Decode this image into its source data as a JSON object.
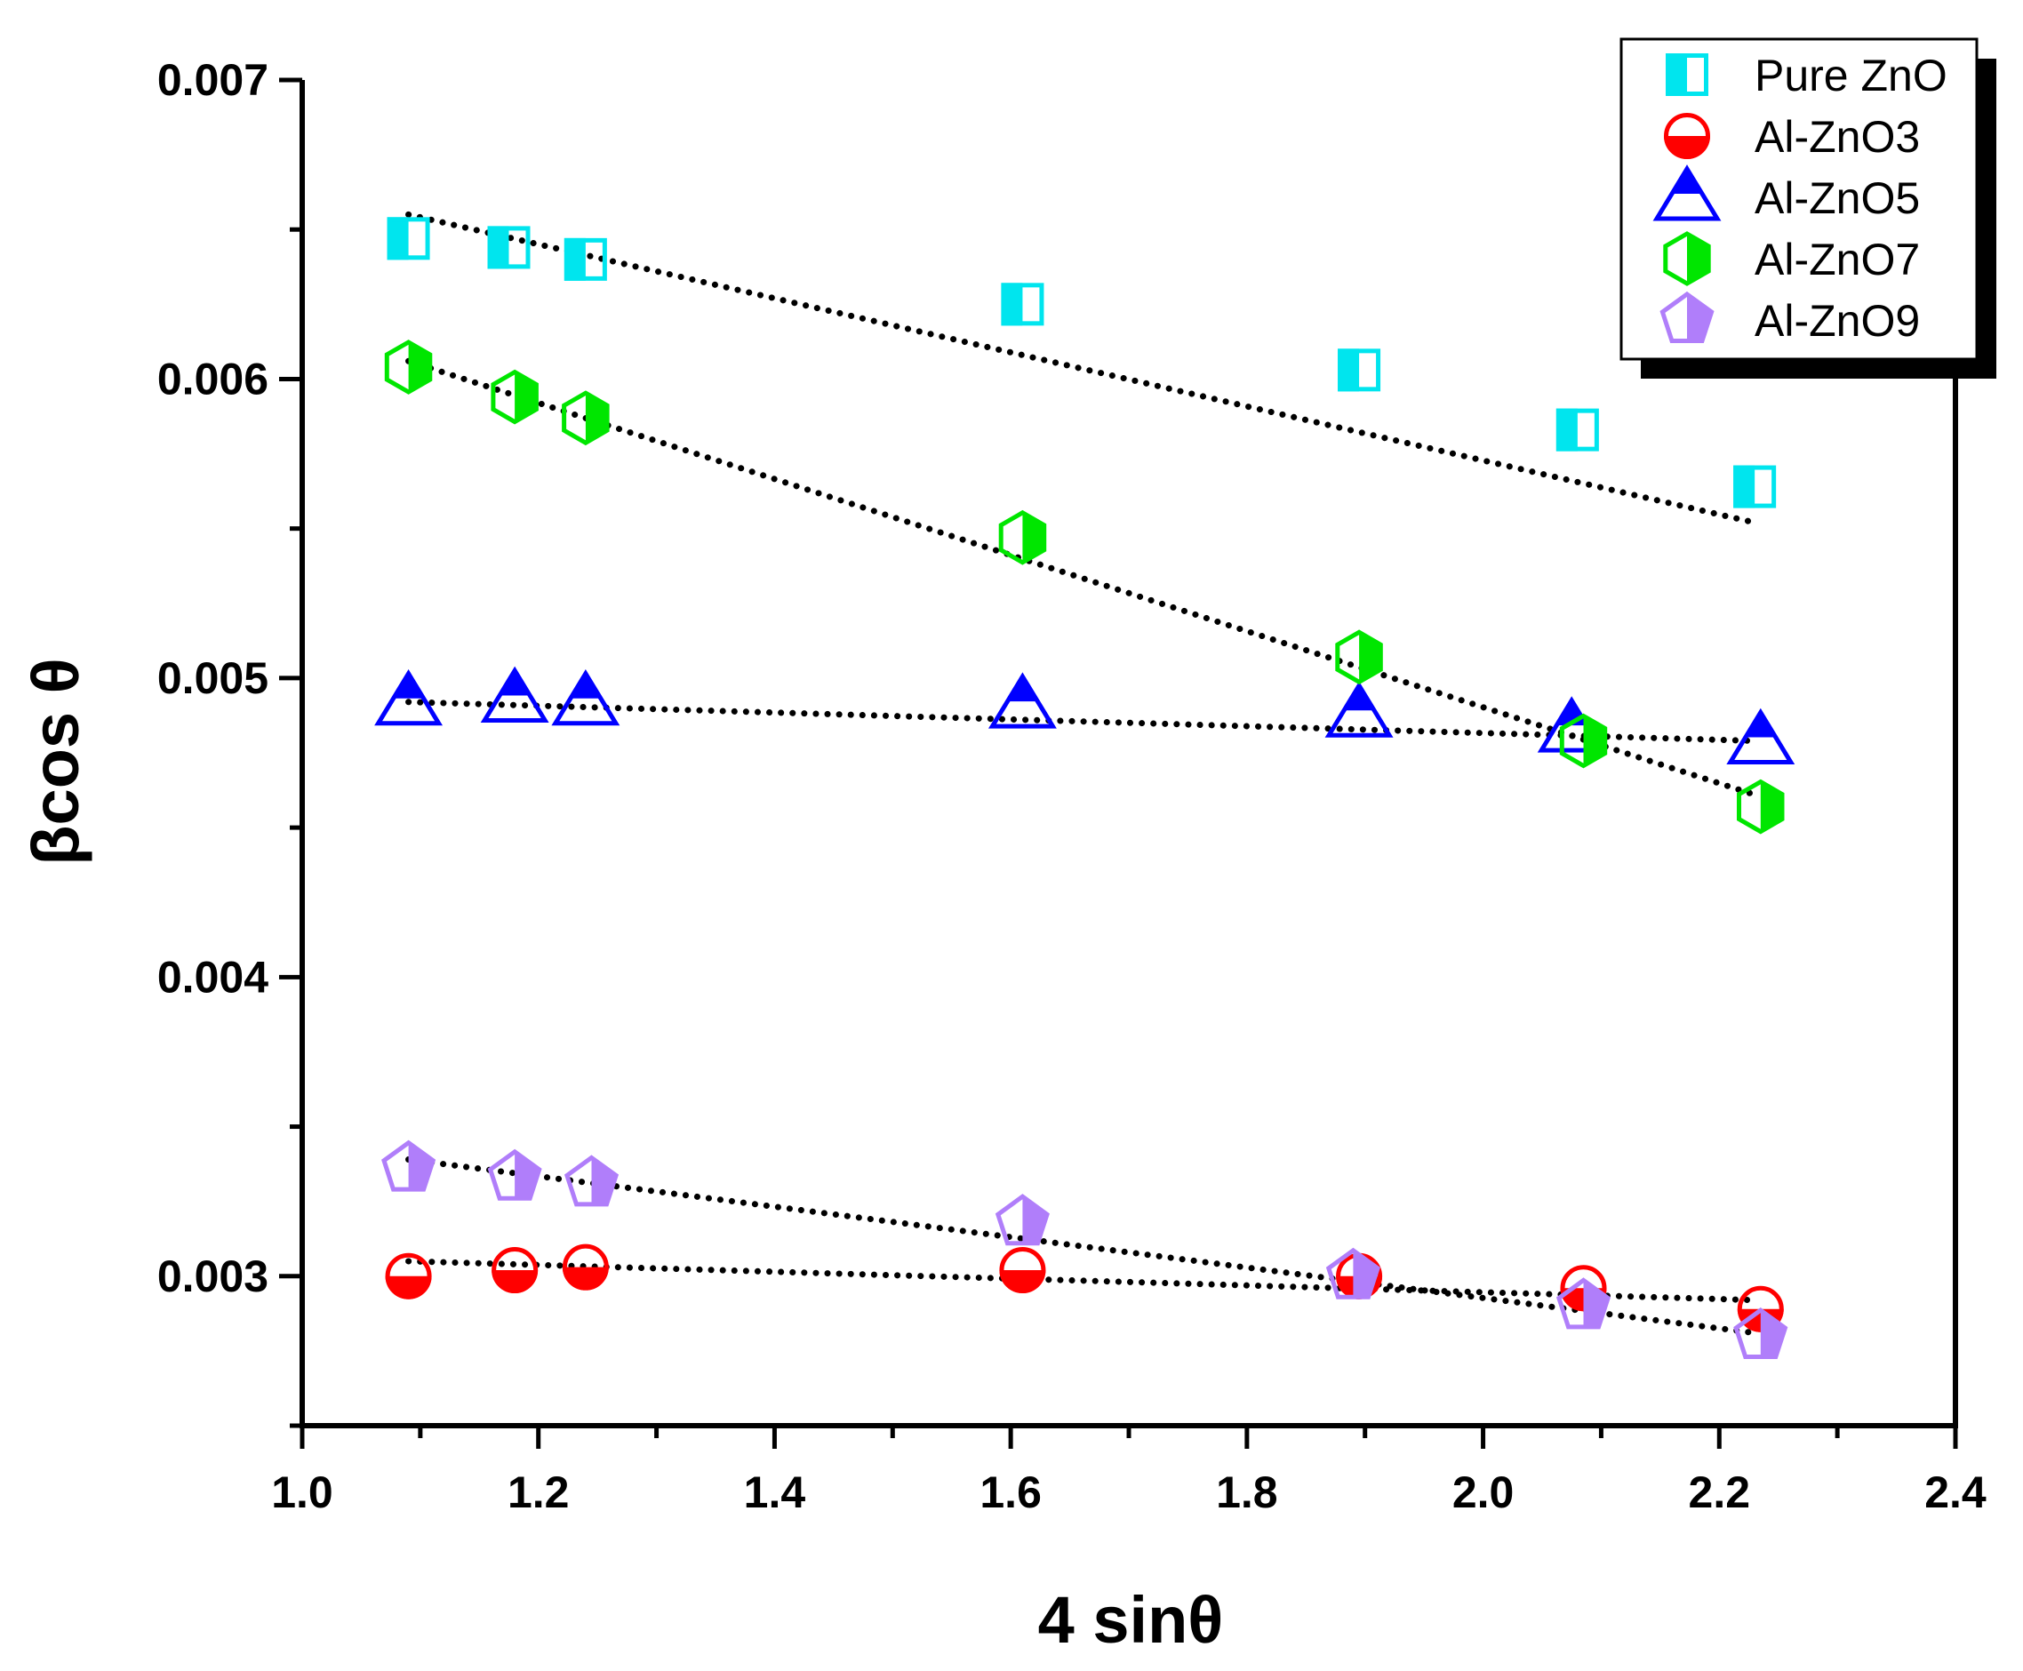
{
  "chart_data": {
    "type": "scatter",
    "title": "",
    "xlabel": "4 sinθ",
    "ylabel": "βcos θ",
    "xlim": [
      1.0,
      2.4
    ],
    "ylim": [
      0.0025,
      0.007
    ],
    "xticks": [
      1.0,
      1.2,
      1.4,
      1.6,
      1.8,
      2.0,
      2.2,
      2.4
    ],
    "xtick_labels": [
      "1.0",
      "1.2",
      "1.4",
      "1.6",
      "1.8",
      "2.0",
      "2.2",
      "2.4"
    ],
    "yticks": [
      0.003,
      0.004,
      0.005,
      0.006,
      0.007
    ],
    "ytick_labels": [
      "0.003",
      "0.004",
      "0.005",
      "0.006",
      "0.007"
    ],
    "grid": false,
    "legend_position": "top-right",
    "series": [
      {
        "name": "Pure ZnO",
        "marker": "square-half",
        "color": "#00E5EE",
        "x": [
          1.09,
          1.175,
          1.24,
          1.61,
          1.895,
          2.08,
          2.23
        ],
        "y": [
          0.00647,
          0.00644,
          0.0064,
          0.00625,
          0.00603,
          0.00583,
          0.00564
        ],
        "fit": {
          "x": [
            1.09,
            2.23
          ],
          "y": [
            0.00655,
            0.00552
          ]
        }
      },
      {
        "name": "Al-ZnO3",
        "marker": "circle-half",
        "color": "#FF0000",
        "x": [
          1.09,
          1.18,
          1.24,
          1.61,
          1.895,
          2.085,
          2.235
        ],
        "y": [
          0.003,
          0.00302,
          0.00303,
          0.00302,
          0.003,
          0.00296,
          0.00289
        ],
        "fit": {
          "x": [
            1.09,
            2.23
          ],
          "y": [
            0.00305,
            0.00292
          ]
        }
      },
      {
        "name": "Al-ZnO5",
        "marker": "triangle-half",
        "color": "#0000FF",
        "x": [
          1.09,
          1.18,
          1.24,
          1.61,
          1.895,
          2.075,
          2.235
        ],
        "y": [
          0.00492,
          0.00493,
          0.00492,
          0.00491,
          0.00488,
          0.00483,
          0.00479
        ],
        "fit": {
          "x": [
            1.09,
            2.23
          ],
          "y": [
            0.00492,
            0.00479
          ]
        }
      },
      {
        "name": "Al-ZnO7",
        "marker": "hexagon-half",
        "color": "#00E600",
        "x": [
          1.09,
          1.18,
          1.24,
          1.61,
          1.895,
          2.085,
          2.235
        ],
        "y": [
          0.00604,
          0.00594,
          0.00587,
          0.00547,
          0.00507,
          0.00479,
          0.00457
        ],
        "fit": {
          "x": [
            1.09,
            2.23
          ],
          "y": [
            0.00606,
            0.00461
          ]
        }
      },
      {
        "name": "Al-ZnO9",
        "marker": "pentagon-half",
        "color": "#B07EFA",
        "x": [
          1.09,
          1.18,
          1.245,
          1.61,
          1.89,
          2.085,
          2.235
        ],
        "y": [
          0.00336,
          0.00333,
          0.00331,
          0.00318,
          0.003,
          0.0029,
          0.0028
        ],
        "fit": {
          "x": [
            1.09,
            2.23
          ],
          "y": [
            0.00339,
            0.00281
          ]
        }
      }
    ]
  }
}
